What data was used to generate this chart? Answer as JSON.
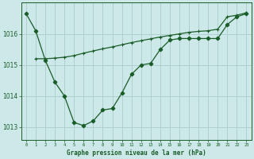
{
  "title": "Graphe pression niveau de la mer (hPa)",
  "bg_color": "#cce8e8",
  "grid_color": "#b0d0d0",
  "line_color": "#1a5c28",
  "xlim": [
    -0.5,
    23.5
  ],
  "ylim": [
    1012.6,
    1017.0
  ],
  "yticks": [
    1013,
    1014,
    1015,
    1016
  ],
  "xtick_labels": [
    "0",
    "1",
    "2",
    "3",
    "4",
    "5",
    "6",
    "7",
    "8",
    "9",
    "10",
    "11",
    "12",
    "13",
    "14",
    "15",
    "16",
    "17",
    "18",
    "19",
    "20",
    "21",
    "22",
    "23"
  ],
  "series1_x": [
    0,
    1,
    2,
    3,
    4,
    5,
    6,
    7,
    8,
    9,
    10,
    11,
    12,
    13,
    14,
    15,
    16,
    17,
    18,
    19,
    20,
    21,
    22,
    23
  ],
  "series1_y": [
    1016.65,
    1016.1,
    1015.15,
    1014.45,
    1014.0,
    1013.15,
    1013.05,
    1013.2,
    1013.55,
    1013.6,
    1014.1,
    1014.7,
    1015.0,
    1015.05,
    1015.5,
    1015.8,
    1015.85,
    1015.85,
    1015.85,
    1015.85,
    1015.85,
    1016.3,
    1016.55,
    1016.65
  ],
  "series2_x": [
    1,
    2,
    3,
    4,
    5,
    6,
    7,
    8,
    9,
    10,
    11,
    12,
    13,
    14,
    15,
    16,
    17,
    18,
    19,
    20,
    21,
    22,
    23
  ],
  "series2_y": [
    1015.2,
    1015.2,
    1015.22,
    1015.25,
    1015.3,
    1015.38,
    1015.45,
    1015.52,
    1015.58,
    1015.65,
    1015.72,
    1015.78,
    1015.84,
    1015.9,
    1015.95,
    1016.0,
    1016.05,
    1016.08,
    1016.1,
    1016.15,
    1016.55,
    1016.6,
    1016.68
  ]
}
